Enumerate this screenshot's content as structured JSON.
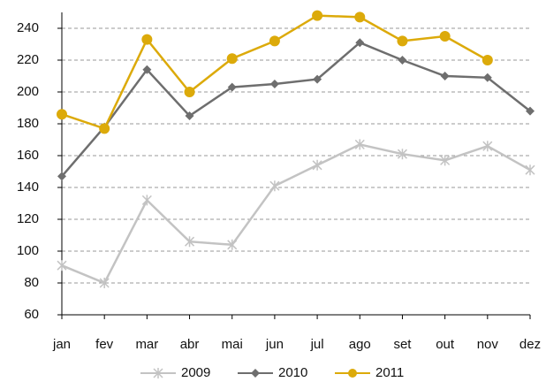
{
  "chart_data": {
    "type": "line",
    "categories": [
      "jan",
      "fev",
      "mar",
      "abr",
      "mai",
      "jun",
      "jul",
      "ago",
      "set",
      "out",
      "nov",
      "dez"
    ],
    "series": [
      {
        "name": "2009",
        "color": "#c3c3c3",
        "marker": "x",
        "values": [
          91,
          80,
          132,
          106,
          104,
          141,
          154,
          167,
          161,
          157,
          166,
          151
        ]
      },
      {
        "name": "2010",
        "color": "#6e6e6e",
        "marker": "diamond",
        "values": [
          147,
          178,
          214,
          185,
          203,
          205,
          208,
          231,
          220,
          210,
          209,
          188
        ]
      },
      {
        "name": "2011",
        "color": "#dcaa0a",
        "marker": "circle",
        "values": [
          186,
          177,
          233,
          200,
          221,
          232,
          248,
          247,
          232,
          235,
          220,
          null
        ]
      }
    ],
    "ylim": [
      60,
      250
    ],
    "yticks": [
      60,
      80,
      100,
      120,
      140,
      160,
      180,
      200,
      220,
      240
    ],
    "grid": true
  }
}
